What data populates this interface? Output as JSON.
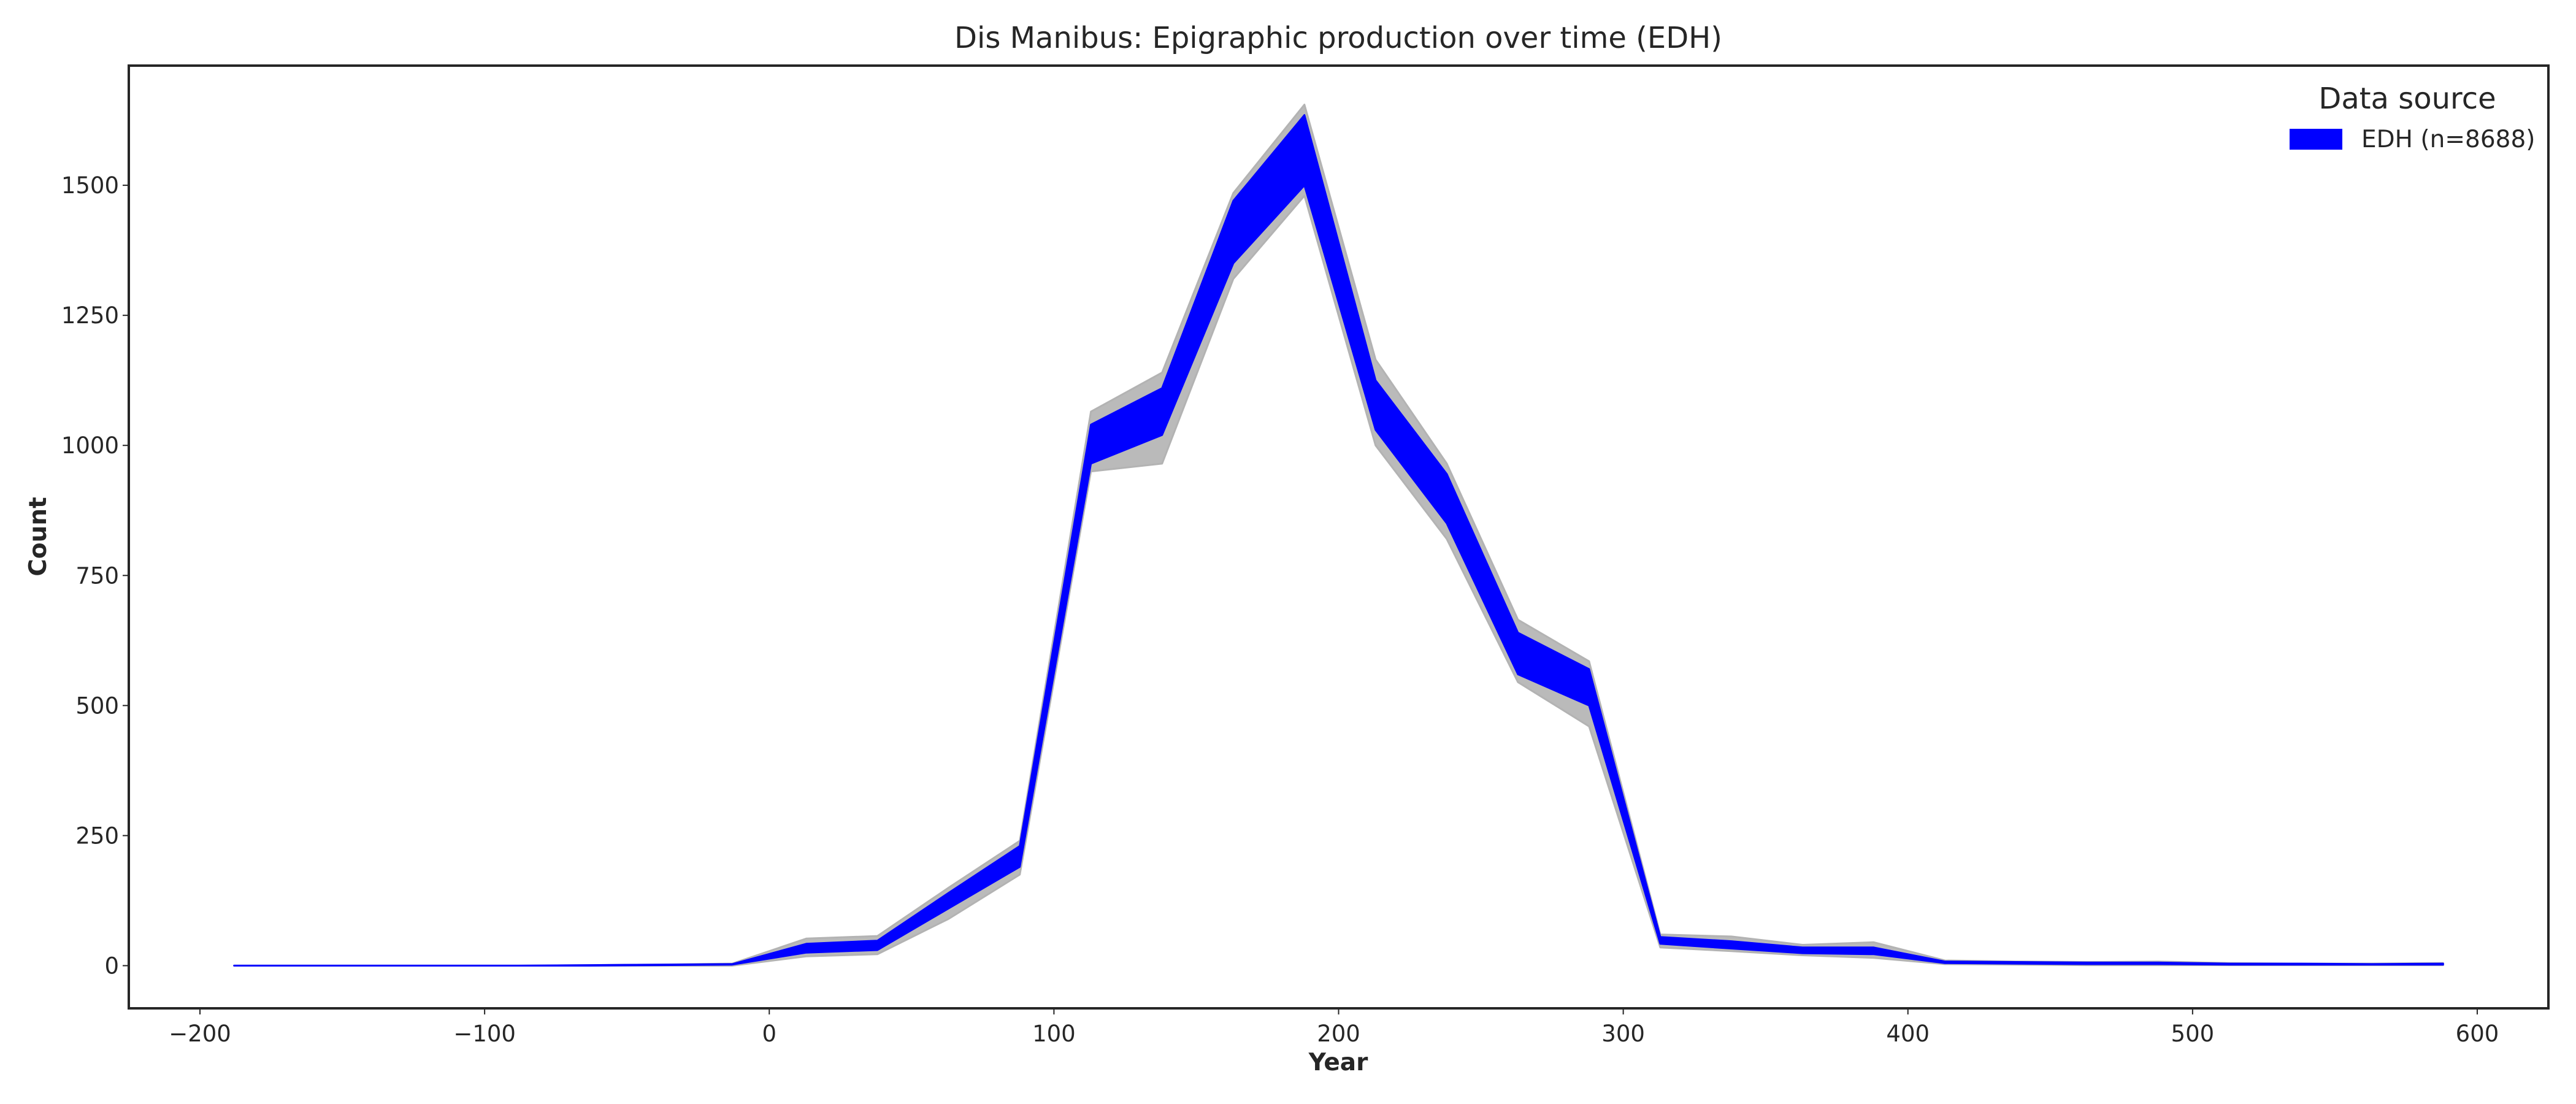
{
  "chart_data": {
    "type": "area",
    "title": "Dis Manibus: Epigraphic production over time (EDH)",
    "xlabel": "Year",
    "ylabel": "Count",
    "xlim": [
      -225,
      625
    ],
    "ylim": [
      -82,
      1730
    ],
    "xticks": [
      -200,
      -100,
      0,
      100,
      200,
      300,
      400,
      500,
      600
    ],
    "xtick_labels": [
      "−200",
      "−100",
      "0",
      "100",
      "200",
      "300",
      "400",
      "500",
      "600"
    ],
    "yticks": [
      0,
      250,
      500,
      750,
      1000,
      1250,
      1500
    ],
    "ytick_labels": [
      "0",
      "250",
      "500",
      "750",
      "1000",
      "1250",
      "1500"
    ],
    "grid": false,
    "legend": {
      "title": "Data source",
      "placement": "top-right",
      "entries": [
        {
          "label": "EDH (n=8688)",
          "color": "#0000ff"
        }
      ]
    },
    "x": [
      -188,
      -163,
      -138,
      -113,
      -88,
      -63,
      -38,
      -13,
      13,
      38,
      63,
      88,
      113,
      138,
      163,
      188,
      213,
      238,
      263,
      288,
      313,
      338,
      363,
      388,
      413,
      438,
      463,
      488,
      513,
      538,
      563,
      588
    ],
    "series": [
      {
        "kind": "outer-range",
        "color": "#b3b3b3",
        "lower": [
          0,
          0,
          0,
          0,
          0,
          0,
          0,
          0,
          18,
          22,
          90,
          175,
          950,
          965,
          1320,
          1480,
          1000,
          820,
          545,
          460,
          35,
          28,
          20,
          15,
          3,
          2,
          1,
          1,
          1,
          1,
          1,
          1
        ],
        "upper": [
          0,
          0,
          0,
          0,
          0,
          1,
          2,
          4,
          52,
          57,
          150,
          240,
          1065,
          1140,
          1485,
          1655,
          1165,
          965,
          665,
          585,
          60,
          56,
          40,
          45,
          10,
          8,
          7,
          8,
          5,
          4,
          4,
          5
        ]
      },
      {
        "kind": "inner-range",
        "color": "#0000ff",
        "lower": [
          0,
          0,
          0,
          0,
          0,
          0,
          1,
          2,
          25,
          30,
          110,
          190,
          965,
          1020,
          1350,
          1500,
          1030,
          850,
          560,
          500,
          42,
          33,
          24,
          22,
          5,
          4,
          3,
          3,
          2,
          2,
          2,
          2
        ],
        "upper": [
          0,
          0,
          0,
          0,
          0,
          1,
          2,
          3,
          42,
          48,
          140,
          230,
          1040,
          1110,
          1470,
          1635,
          1125,
          945,
          640,
          570,
          55,
          47,
          35,
          35,
          8,
          7,
          6,
          6,
          4,
          4,
          3,
          4
        ]
      }
    ]
  }
}
